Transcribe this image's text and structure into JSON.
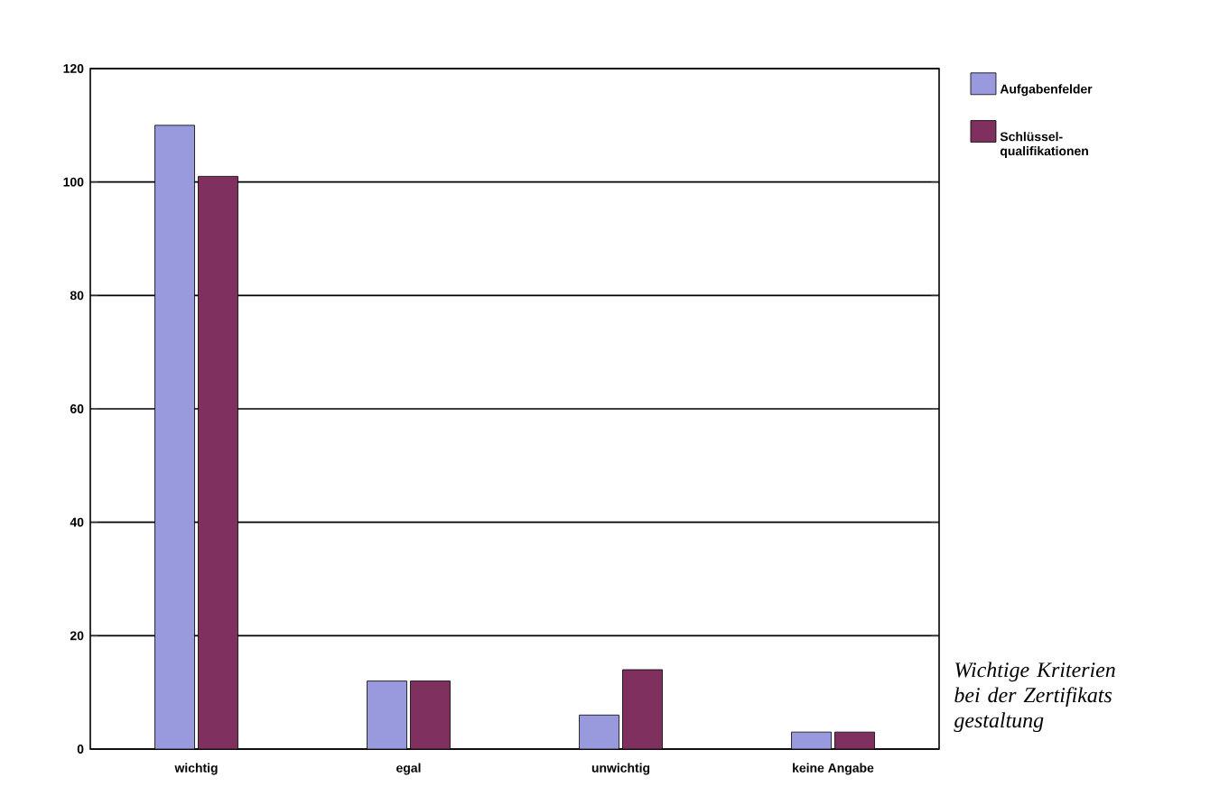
{
  "chart_data": {
    "type": "bar",
    "title": "Wichtige Kriterien bei der Zertifikats gestaltung",
    "categories": [
      "wichtig",
      "egal",
      "unwichtig",
      "keine Angabe"
    ],
    "series": [
      {
        "name": "Aufgabenfelder",
        "color": "#9999dd",
        "values": [
          110,
          12,
          6,
          3
        ]
      },
      {
        "name": "Schlüssel-qualifikationen",
        "color": "#80305f",
        "values": [
          101,
          12,
          14,
          3
        ]
      }
    ],
    "ylim": [
      0,
      120
    ],
    "yticks": [
      0,
      20,
      40,
      60,
      80,
      100,
      120
    ],
    "grid": "y",
    "legend": "top right"
  }
}
